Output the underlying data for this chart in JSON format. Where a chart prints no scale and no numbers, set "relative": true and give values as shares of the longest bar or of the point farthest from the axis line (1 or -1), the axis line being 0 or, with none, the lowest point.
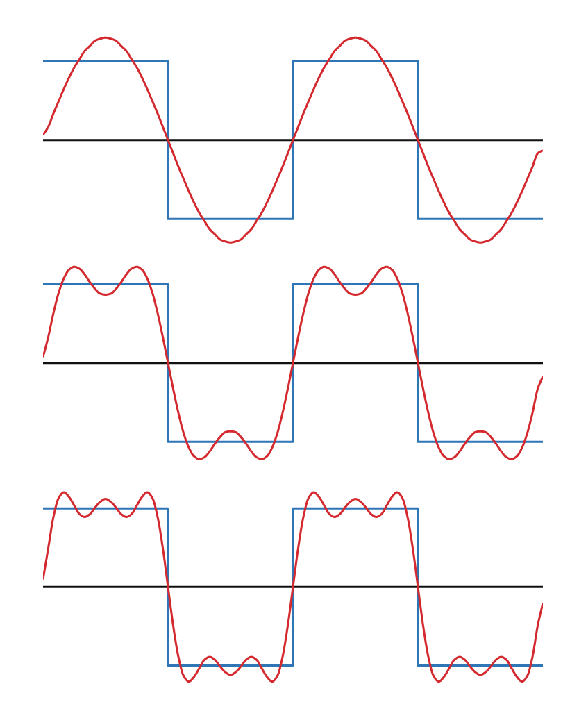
{
  "chart_data": [
    {
      "type": "line",
      "relative": true,
      "categories": [
        null,
        null,
        null,
        null,
        null,
        null,
        null,
        null,
        null,
        null,
        null,
        null,
        null,
        null,
        null,
        null,
        null,
        null,
        null,
        null,
        null,
        null,
        null,
        null,
        null,
        null,
        null,
        null,
        null,
        null,
        null,
        null,
        null,
        null,
        null,
        null,
        null,
        null,
        null,
        null,
        null,
        null,
        null,
        null,
        null,
        null,
        null,
        null,
        null,
        null,
        null,
        null,
        null,
        null,
        null,
        null,
        null,
        null,
        null,
        null,
        null,
        null,
        null,
        null,
        null,
        null,
        null,
        null,
        null,
        null,
        null,
        null,
        null,
        null,
        null,
        null,
        null,
        null,
        null,
        null,
        null,
        null,
        null,
        null,
        null,
        null,
        null,
        null,
        null,
        null,
        null,
        null,
        null,
        null,
        null,
        null,
        null
      ],
      "series": [
        {
          "type": "step",
          "color": "#2e76b6",
          "values": [
            0.77,
            0.77,
            0.77,
            0.77,
            0.77,
            0.77,
            0.77,
            0.77,
            0.77,
            0.77,
            0.77,
            0.77,
            0.77,
            0.77,
            0.77,
            0.77,
            0.77,
            0.77,
            0.77,
            0.77,
            0.77,
            0.77,
            0.77,
            0.77,
            -0.77,
            -0.77,
            -0.77,
            -0.77,
            -0.77,
            -0.77,
            -0.77,
            -0.77,
            -0.77,
            -0.77,
            -0.77,
            -0.77,
            -0.77,
            -0.77,
            -0.77,
            -0.77,
            -0.77,
            -0.77,
            -0.77,
            -0.77,
            -0.77,
            -0.77,
            -0.77,
            -0.77,
            0.77,
            0.77,
            0.77,
            0.77,
            0.77,
            0.77,
            0.77,
            0.77,
            0.77,
            0.77,
            0.77,
            0.77,
            0.77,
            0.77,
            0.77,
            0.77,
            0.77,
            0.77,
            0.77,
            0.77,
            0.77,
            0.77,
            0.77,
            0.77,
            -0.77,
            -0.77,
            -0.77,
            -0.77,
            -0.77,
            -0.77,
            -0.77,
            -0.77,
            -0.77,
            -0.77,
            -0.77,
            -0.77,
            -0.77,
            -0.77,
            -0.77,
            -0.77,
            -0.77,
            -0.77,
            -0.77,
            -0.77,
            -0.77,
            -0.77,
            -0.77,
            -0.77,
            -0.77
          ]
        },
        {
          "color": "#d42a2f",
          "values": [
            0.05,
            0.13,
            0.26,
            0.38,
            0.5,
            0.61,
            0.71,
            0.79,
            0.87,
            0.92,
            0.97,
            0.99,
            1,
            0.99,
            0.97,
            0.92,
            0.87,
            0.79,
            0.71,
            0.61,
            0.5,
            0.38,
            0.26,
            0.13,
            0,
            -0.13,
            -0.26,
            -0.38,
            -0.5,
            -0.61,
            -0.71,
            -0.79,
            -0.87,
            -0.92,
            -0.97,
            -0.99,
            -1,
            -0.99,
            -0.97,
            -0.92,
            -0.87,
            -0.79,
            -0.71,
            -0.61,
            -0.5,
            -0.38,
            -0.26,
            -0.13,
            0,
            0.13,
            0.26,
            0.38,
            0.5,
            0.61,
            0.71,
            0.79,
            0.87,
            0.92,
            0.97,
            0.99,
            1,
            0.99,
            0.97,
            0.92,
            0.87,
            0.79,
            0.71,
            0.61,
            0.5,
            0.38,
            0.26,
            0.13,
            0,
            -0.13,
            -0.26,
            -0.38,
            -0.5,
            -0.61,
            -0.71,
            -0.79,
            -0.87,
            -0.92,
            -0.97,
            -0.99,
            -1,
            -0.99,
            -0.97,
            -0.92,
            -0.87,
            -0.79,
            -0.71,
            -0.61,
            -0.5,
            -0.38,
            -0.26,
            -0.13,
            -0.1
          ]
        }
      ]
    },
    {
      "type": "line",
      "relative": true,
      "categories": [
        null,
        null,
        null,
        null,
        null,
        null,
        null,
        null,
        null,
        null,
        null,
        null,
        null,
        null,
        null,
        null,
        null,
        null,
        null,
        null,
        null,
        null,
        null,
        null,
        null,
        null,
        null,
        null,
        null,
        null,
        null,
        null,
        null,
        null,
        null,
        null,
        null,
        null,
        null,
        null,
        null,
        null,
        null,
        null,
        null,
        null,
        null,
        null,
        null,
        null,
        null,
        null,
        null,
        null,
        null,
        null,
        null,
        null,
        null,
        null,
        null,
        null,
        null,
        null,
        null,
        null,
        null,
        null,
        null,
        null,
        null,
        null,
        null,
        null,
        null,
        null,
        null,
        null,
        null,
        null,
        null,
        null,
        null,
        null,
        null,
        null,
        null,
        null,
        null,
        null,
        null,
        null,
        null,
        null,
        null,
        null,
        null
      ],
      "series": [
        {
          "type": "step",
          "color": "#2e76b6",
          "values": [
            0.82,
            0.82,
            0.82,
            0.82,
            0.82,
            0.82,
            0.82,
            0.82,
            0.82,
            0.82,
            0.82,
            0.82,
            0.82,
            0.82,
            0.82,
            0.82,
            0.82,
            0.82,
            0.82,
            0.82,
            0.82,
            0.82,
            0.82,
            0.82,
            -0.82,
            -0.82,
            -0.82,
            -0.82,
            -0.82,
            -0.82,
            -0.82,
            -0.82,
            -0.82,
            -0.82,
            -0.82,
            -0.82,
            -0.82,
            -0.82,
            -0.82,
            -0.82,
            -0.82,
            -0.82,
            -0.82,
            -0.82,
            -0.82,
            -0.82,
            -0.82,
            -0.82,
            0.82,
            0.82,
            0.82,
            0.82,
            0.82,
            0.82,
            0.82,
            0.82,
            0.82,
            0.82,
            0.82,
            0.82,
            0.82,
            0.82,
            0.82,
            0.82,
            0.82,
            0.82,
            0.82,
            0.82,
            0.82,
            0.82,
            0.82,
            0.82,
            -0.82,
            -0.82,
            -0.82,
            -0.82,
            -0.82,
            -0.82,
            -0.82,
            -0.82,
            -0.82,
            -0.82,
            -0.82,
            -0.82,
            -0.82,
            -0.82,
            -0.82,
            -0.82,
            -0.82,
            -0.82,
            -0.82,
            -0.82,
            -0.82,
            -0.82,
            -0.82,
            -0.82,
            -0.82
          ]
        },
        {
          "color": "#d42a2f",
          "values": [
            0.06,
            0.27,
            0.52,
            0.73,
            0.88,
            0.97,
            1,
            0.98,
            0.92,
            0.84,
            0.77,
            0.72,
            0.71,
            0.72,
            0.77,
            0.84,
            0.92,
            0.98,
            1,
            0.97,
            0.88,
            0.73,
            0.52,
            0.27,
            0,
            -0.27,
            -0.52,
            -0.73,
            -0.88,
            -0.97,
            -1,
            -0.98,
            -0.92,
            -0.84,
            -0.77,
            -0.72,
            -0.71,
            -0.72,
            -0.77,
            -0.84,
            -0.92,
            -0.98,
            -1,
            -0.97,
            -0.88,
            -0.73,
            -0.52,
            -0.27,
            0,
            0.27,
            0.52,
            0.73,
            0.88,
            0.97,
            1,
            0.98,
            0.92,
            0.84,
            0.77,
            0.72,
            0.71,
            0.72,
            0.77,
            0.84,
            0.92,
            0.98,
            1,
            0.97,
            0.88,
            0.73,
            0.52,
            0.27,
            0,
            -0.27,
            -0.52,
            -0.73,
            -0.88,
            -0.97,
            -1,
            -0.98,
            -0.92,
            -0.84,
            -0.77,
            -0.72,
            -0.71,
            -0.72,
            -0.77,
            -0.84,
            -0.92,
            -0.98,
            -1,
            -0.97,
            -0.88,
            -0.73,
            -0.52,
            -0.27,
            -0.14
          ]
        }
      ]
    },
    {
      "type": "line",
      "relative": true,
      "categories": [
        null,
        null,
        null,
        null,
        null,
        null,
        null,
        null,
        null,
        null,
        null,
        null,
        null,
        null,
        null,
        null,
        null,
        null,
        null,
        null,
        null,
        null,
        null,
        null,
        null,
        null,
        null,
        null,
        null,
        null,
        null,
        null,
        null,
        null,
        null,
        null,
        null,
        null,
        null,
        null,
        null,
        null,
        null,
        null,
        null,
        null,
        null,
        null,
        null,
        null,
        null,
        null,
        null,
        null,
        null,
        null,
        null,
        null,
        null,
        null,
        null,
        null,
        null,
        null,
        null,
        null,
        null,
        null,
        null,
        null,
        null,
        null,
        null,
        null,
        null,
        null,
        null,
        null,
        null,
        null,
        null,
        null,
        null,
        null,
        null,
        null,
        null,
        null,
        null,
        null,
        null,
        null,
        null,
        null,
        null,
        null,
        null
      ],
      "series": [
        {
          "type": "step",
          "color": "#2e76b6",
          "values": [
            0.83,
            0.83,
            0.83,
            0.83,
            0.83,
            0.83,
            0.83,
            0.83,
            0.83,
            0.83,
            0.83,
            0.83,
            0.83,
            0.83,
            0.83,
            0.83,
            0.83,
            0.83,
            0.83,
            0.83,
            0.83,
            0.83,
            0.83,
            0.83,
            -0.83,
            -0.83,
            -0.83,
            -0.83,
            -0.83,
            -0.83,
            -0.83,
            -0.83,
            -0.83,
            -0.83,
            -0.83,
            -0.83,
            -0.83,
            -0.83,
            -0.83,
            -0.83,
            -0.83,
            -0.83,
            -0.83,
            -0.83,
            -0.83,
            -0.83,
            -0.83,
            -0.83,
            0.83,
            0.83,
            0.83,
            0.83,
            0.83,
            0.83,
            0.83,
            0.83,
            0.83,
            0.83,
            0.83,
            0.83,
            0.83,
            0.83,
            0.83,
            0.83,
            0.83,
            0.83,
            0.83,
            0.83,
            0.83,
            0.83,
            0.83,
            0.83,
            -0.83,
            -0.83,
            -0.83,
            -0.83,
            -0.83,
            -0.83,
            -0.83,
            -0.83,
            -0.83,
            -0.83,
            -0.83,
            -0.83,
            -0.83,
            -0.83,
            -0.83,
            -0.83,
            -0.83,
            -0.83,
            -0.83,
            -0.83,
            -0.83,
            -0.83,
            -0.83,
            -0.83,
            -0.83
          ]
        },
        {
          "color": "#d42a2f",
          "values": [
            0.08,
            0.41,
            0.74,
            0.94,
            1,
            0.95,
            0.86,
            0.77,
            0.74,
            0.77,
            0.84,
            0.9,
            0.93,
            0.9,
            0.84,
            0.77,
            0.74,
            0.77,
            0.86,
            0.95,
            1,
            0.94,
            0.74,
            0.41,
            0,
            -0.41,
            -0.74,
            -0.94,
            -1,
            -0.95,
            -0.86,
            -0.77,
            -0.74,
            -0.77,
            -0.84,
            -0.9,
            -0.93,
            -0.9,
            -0.84,
            -0.77,
            -0.74,
            -0.77,
            -0.86,
            -0.95,
            -1,
            -0.94,
            -0.74,
            -0.41,
            0,
            0.41,
            0.74,
            0.94,
            1,
            0.95,
            0.86,
            0.77,
            0.74,
            0.77,
            0.84,
            0.9,
            0.93,
            0.9,
            0.84,
            0.77,
            0.74,
            0.77,
            0.86,
            0.95,
            1,
            0.94,
            0.74,
            0.41,
            0,
            -0.41,
            -0.74,
            -0.94,
            -1,
            -0.95,
            -0.86,
            -0.77,
            -0.74,
            -0.77,
            -0.84,
            -0.9,
            -0.93,
            -0.9,
            -0.84,
            -0.77,
            -0.74,
            -0.77,
            -0.86,
            -0.95,
            -1,
            -0.94,
            -0.74,
            -0.41,
            -0.17
          ]
        }
      ]
    }
  ]
}
